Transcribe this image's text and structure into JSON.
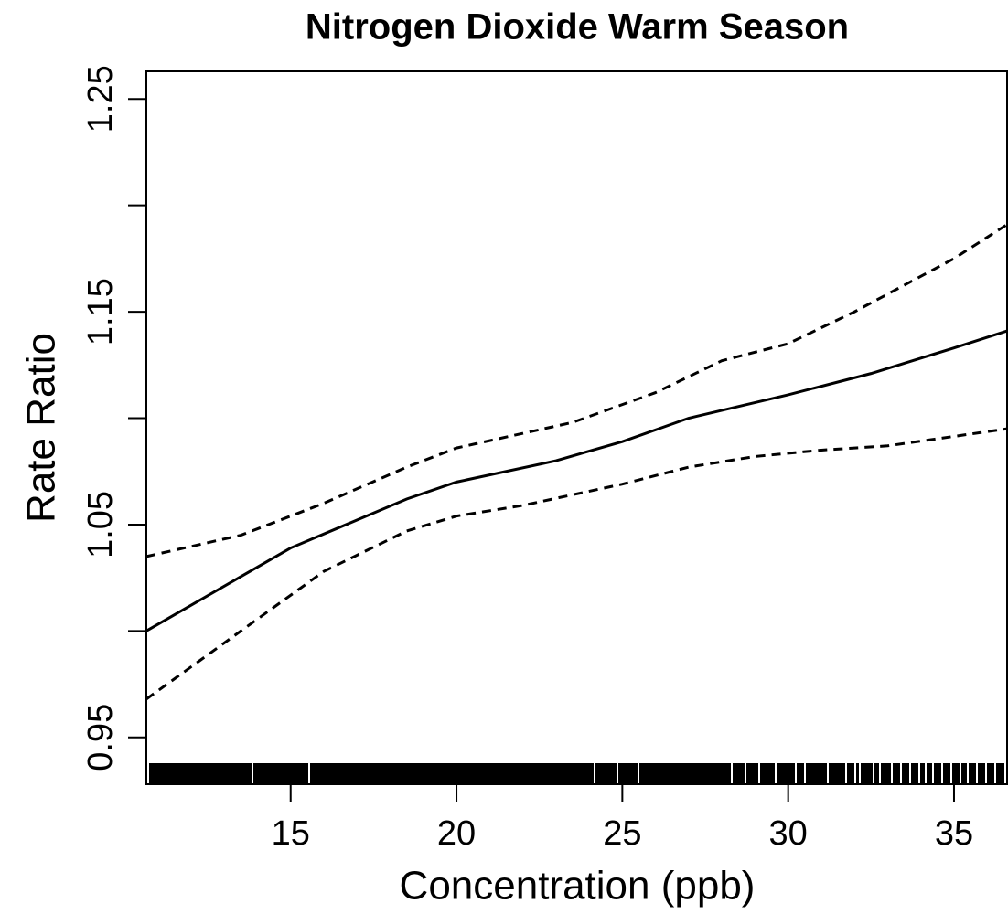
{
  "chart_data": {
    "type": "line",
    "title": "Nitrogen Dioxide Warm Season",
    "xlabel": "Concentration (ppb)",
    "ylabel": "Rate Ratio",
    "xlim": [
      10.65,
      36.6
    ],
    "xticks": [
      15,
      20,
      25,
      30,
      35
    ],
    "ylim": [
      0.928,
      1.263
    ],
    "yticks": [
      0.95,
      1.05,
      1.15,
      1.25
    ],
    "yminorticks": [
      1.0,
      1.1,
      1.2
    ],
    "rug": true,
    "series": [
      {
        "color": "#000000",
        "dash": false,
        "x": [
          10.65,
          15,
          18.5,
          20,
          23,
          25,
          27,
          30,
          32.5,
          35,
          36.6
        ],
        "values": [
          1.0,
          1.039,
          1.062,
          1.07,
          1.08,
          1.089,
          1.1,
          1.111,
          1.121,
          1.133,
          1.141
        ]
      },
      {
        "color": "#000000",
        "dash": true,
        "x": [
          10.65,
          13.5,
          16,
          18.5,
          20,
          23.5,
          26,
          28,
          30,
          32,
          35,
          36.6
        ],
        "values": [
          1.035,
          1.045,
          1.06,
          1.077,
          1.086,
          1.098,
          1.112,
          1.127,
          1.135,
          1.15,
          1.175,
          1.191
        ]
      },
      {
        "color": "#000000",
        "dash": true,
        "x": [
          10.65,
          13.5,
          16,
          18.5,
          20,
          22,
          25,
          27,
          29,
          31,
          33,
          36.6
        ],
        "values": [
          0.968,
          1.0,
          1.028,
          1.047,
          1.054,
          1.059,
          1.069,
          1.077,
          1.082,
          1.085,
          1.087,
          1.095
        ]
      }
    ]
  }
}
